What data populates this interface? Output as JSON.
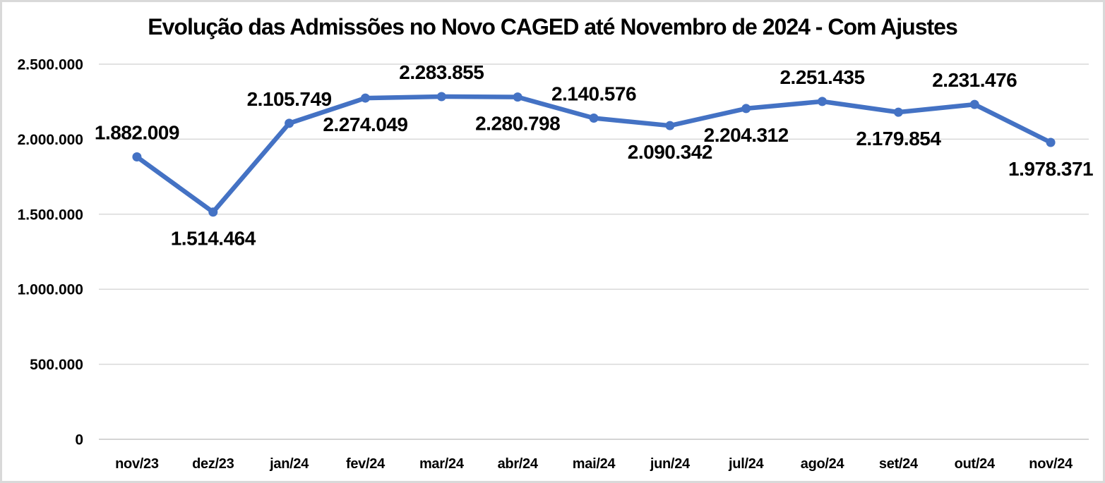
{
  "chart_data": {
    "type": "line",
    "title": "Evolução das Admissões no Novo CAGED até Novembro de 2024 - Com Ajustes",
    "categories": [
      "nov/23",
      "dez/23",
      "jan/24",
      "fev/24",
      "mar/24",
      "abr/24",
      "mai/24",
      "jun/24",
      "jul/24",
      "ago/24",
      "set/24",
      "out/24",
      "nov/24"
    ],
    "values": [
      1882009,
      1514464,
      2105749,
      2274049,
      2283855,
      2280798,
      2140576,
      2090342,
      2204312,
      2251435,
      2179854,
      2231476,
      1978371
    ],
    "data_labels": [
      "1.882.009",
      "1.514.464",
      "2.105.749",
      "2.274.049",
      "2.283.855",
      "2.280.798",
      "2.140.576",
      "2.090.342",
      "2.204.312",
      "2.251.435",
      "2.179.854",
      "2.231.476",
      "1.978.371"
    ],
    "label_positions": [
      "above",
      "below",
      "above",
      "below",
      "above",
      "below",
      "above",
      "below",
      "below",
      "above",
      "below",
      "above",
      "below"
    ],
    "xlabel": "",
    "ylabel": "",
    "ylim": [
      0,
      2500000
    ],
    "y_ticks": [
      {
        "value": 0,
        "label": "0"
      },
      {
        "value": 500000,
        "label": "500.000"
      },
      {
        "value": 1000000,
        "label": "1.000.000"
      },
      {
        "value": 1500000,
        "label": "1.500.000"
      },
      {
        "value": 2000000,
        "label": "2.000.000"
      },
      {
        "value": 2500000,
        "label": "2.500.000"
      }
    ],
    "grid": true,
    "legend_position": "none",
    "colors": {
      "line": "#4472C4",
      "marker": "#4472C4",
      "gridline": "#D9D9D9",
      "axis_line": "#C6C6C6",
      "text": "#000000",
      "frame_border": "#D9D9D9",
      "background": "#FFFFFF"
    }
  }
}
